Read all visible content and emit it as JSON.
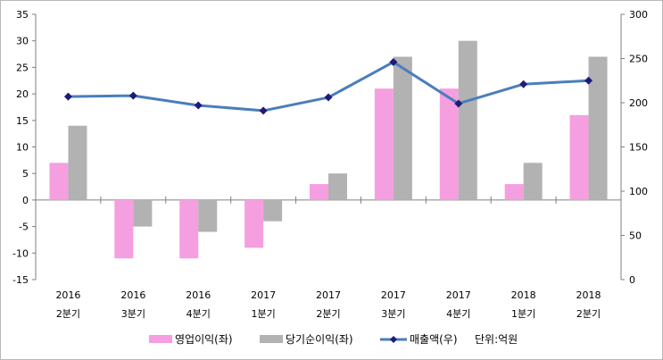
{
  "chart_data": {
    "type": "bar",
    "categories": [
      {
        "year": "2016",
        "quarter": "2분기"
      },
      {
        "year": "2016",
        "quarter": "3분기"
      },
      {
        "year": "2016",
        "quarter": "4분기"
      },
      {
        "year": "2017",
        "quarter": "1분기"
      },
      {
        "year": "2017",
        "quarter": "2분기"
      },
      {
        "year": "2017",
        "quarter": "3분기"
      },
      {
        "year": "2017",
        "quarter": "4분기"
      },
      {
        "year": "2018",
        "quarter": "1분기"
      },
      {
        "year": "2018",
        "quarter": "2분기"
      }
    ],
    "series": [
      {
        "name": "영업이익(좌)",
        "type": "bar",
        "axis": "left",
        "color": "#f59fe0",
        "values": [
          7,
          -11,
          -11,
          -9,
          3,
          21,
          21,
          3,
          16
        ]
      },
      {
        "name": "당기순이익(좌)",
        "type": "bar",
        "axis": "left",
        "color": "#b2b2b2",
        "values": [
          14,
          -5,
          -6,
          -4,
          5,
          27,
          30,
          7,
          27
        ]
      },
      {
        "name": "매출액(우)",
        "type": "line",
        "axis": "right",
        "color": "#4a7ebb",
        "marker_color": "#1f1a7a",
        "values": [
          207,
          208,
          197,
          191,
          206,
          246,
          199,
          221,
          225
        ]
      }
    ],
    "left_axis": {
      "min": -15,
      "max": 35,
      "step": 5,
      "ticks": [
        "-15",
        "-10",
        "-5",
        "0",
        "5",
        "10",
        "15",
        "20",
        "25",
        "30",
        "35"
      ]
    },
    "right_axis": {
      "min": 0,
      "max": 300,
      "step": 50,
      "ticks": [
        "0",
        "50",
        "100",
        "150",
        "200",
        "250",
        "300"
      ]
    },
    "legend": {
      "position": "bottom",
      "items": [
        "영업이익(좌)",
        "당기순이익(좌)",
        "매출액(우)"
      ],
      "unit_note": "단위:억원"
    },
    "grid": false
  }
}
